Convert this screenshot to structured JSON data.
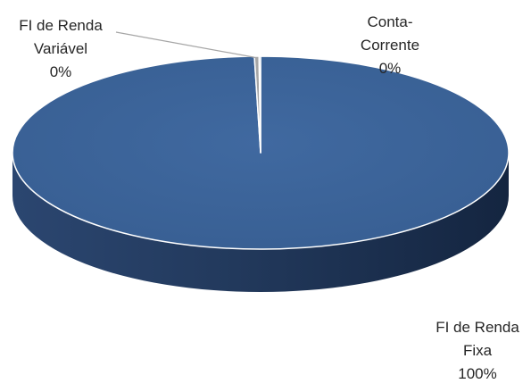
{
  "chart_data": {
    "type": "pie",
    "style": "3d",
    "title": "",
    "slices": [
      {
        "name": "FI de Renda Fixa",
        "value": 99.6,
        "label_name": [
          "FI de Renda",
          "Fixa"
        ],
        "label_value": "100%",
        "color": "#3c6497"
      },
      {
        "name": "FI de Renda Variável",
        "value": 0.3,
        "label_name": [
          "FI de Renda",
          "Variável"
        ],
        "label_value": "0%",
        "color": "#a6a6a6"
      },
      {
        "name": "Conta-Corrente",
        "value": 0.1,
        "label_name": [
          "Conta-",
          "Corrente"
        ],
        "label_value": "0%",
        "color": "#7f9cc9"
      }
    ],
    "legend": "none",
    "colors": {
      "top": "#3c6497",
      "side_dark": "#172a44",
      "side_light": "#2e4a73",
      "edge": "#ffffff"
    }
  }
}
